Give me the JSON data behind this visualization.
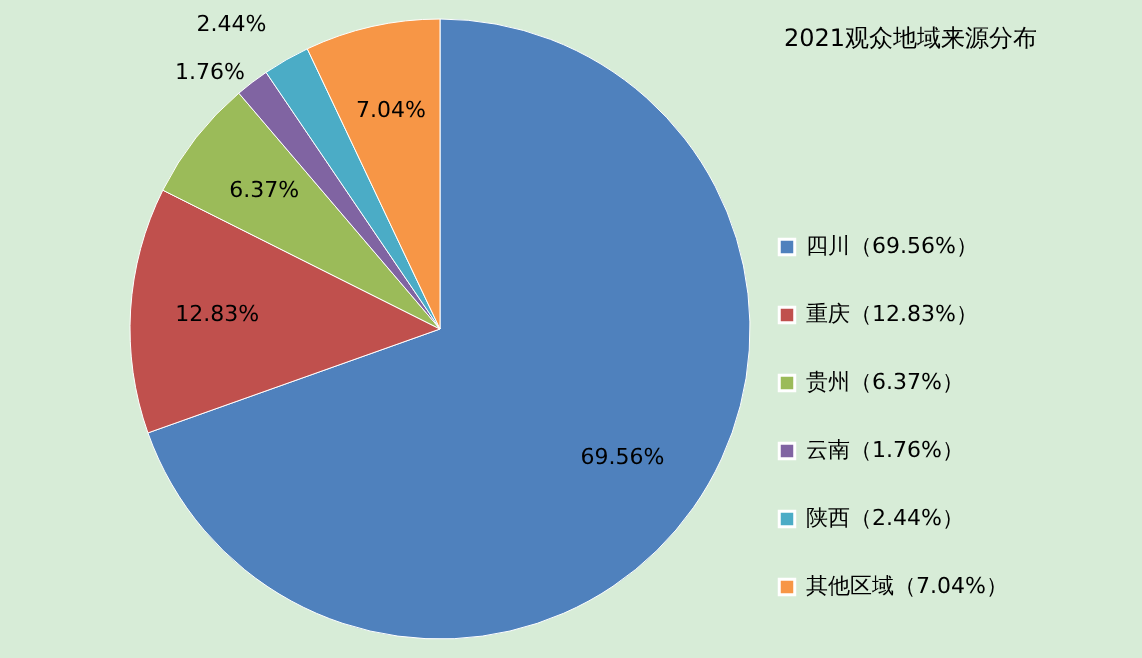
{
  "chart_data": {
    "type": "pie",
    "title": "2021观众地域来源分布",
    "categories": [
      "四川（69.56%）",
      "重庆（12.83%）",
      "贵州（6.37%）",
      "云南（1.76%）",
      "陕西（2.44%）",
      "其他区域（7.04%）"
    ],
    "values": [
      69.56,
      12.83,
      6.37,
      1.76,
      2.44,
      7.04
    ],
    "value_labels": [
      "69.56%",
      "12.83%",
      "6.37%",
      "1.76%",
      "2.44%",
      "7.04%"
    ],
    "colors": [
      "#4f81bd",
      "#c0504d",
      "#9bbb59",
      "#8064a2",
      "#4bacc6",
      "#f79646"
    ],
    "legend": "right"
  }
}
